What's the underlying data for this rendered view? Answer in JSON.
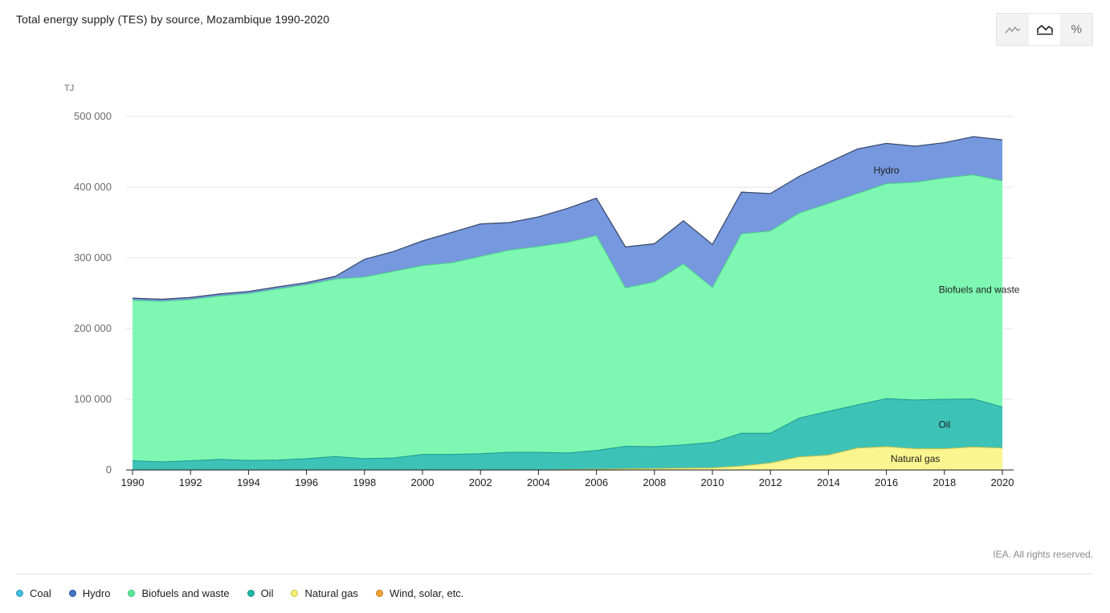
{
  "title": "Total energy supply (TES) by source, Mozambique 1990-2020",
  "view_modes": [
    {
      "name": "line",
      "icon": "line-chart-icon",
      "glyph": "⩘",
      "active": false
    },
    {
      "name": "area",
      "icon": "area-chart-icon",
      "glyph": "⛰",
      "active": true
    },
    {
      "name": "percent",
      "icon": "percent-icon",
      "glyph": "%",
      "active": false
    }
  ],
  "credit": "IEA. All rights reserved.",
  "legend": [
    {
      "label": "Coal",
      "color": "#44bde3"
    },
    {
      "label": "Hydro",
      "color": "#4472c4"
    },
    {
      "label": "Biofuels and waste",
      "color": "#5ce89a"
    },
    {
      "label": "Oil",
      "color": "#1fb8a6"
    },
    {
      "label": "Natural gas",
      "color": "#f5ef72"
    },
    {
      "label": "Wind, solar, etc.",
      "color": "#f0a035"
    }
  ],
  "chart_data": {
    "type": "area",
    "stacked": true,
    "title": "Total energy supply (TES) by source, Mozambique 1990-2020",
    "ylabel": "TJ",
    "ylim": [
      0,
      500000
    ],
    "yticks": [
      "0",
      "100 000",
      "200 000",
      "300 000",
      "400 000",
      "500 000"
    ],
    "ytick_values": [
      0,
      100000,
      200000,
      300000,
      400000,
      500000
    ],
    "xticks": [
      1990,
      1992,
      1994,
      1996,
      1998,
      2000,
      2002,
      2004,
      2006,
      2008,
      2010,
      2012,
      2014,
      2016,
      2018,
      2020
    ],
    "x": [
      1990,
      1991,
      1992,
      1993,
      1994,
      1995,
      1996,
      1997,
      1998,
      1999,
      2000,
      2001,
      2002,
      2003,
      2004,
      2005,
      2006,
      2007,
      2008,
      2009,
      2010,
      2011,
      2012,
      2013,
      2014,
      2015,
      2016,
      2017,
      2018,
      2019,
      2020
    ],
    "grid": true,
    "series": [
      {
        "name": "Natural gas",
        "color": "#faf58f",
        "line": "#c9c34a",
        "label": "Natural gas",
        "label_x": 2017,
        "label_y": 16000,
        "values": [
          0,
          0,
          0,
          0,
          0,
          0,
          0,
          0,
          0,
          0,
          0,
          0,
          0,
          0,
          0,
          500,
          1000,
          1500,
          2000,
          2500,
          3000,
          5500,
          10000,
          18500,
          21000,
          31000,
          33000,
          30000,
          30000,
          32500,
          31000
        ]
      },
      {
        "name": "Oil",
        "color": "#3dc2b8",
        "line": "#1d9a8e",
        "label": "Oil",
        "label_x": 2018,
        "label_y": 64000,
        "values": [
          13000,
          11500,
          13000,
          15000,
          13500,
          14000,
          16000,
          19000,
          16000,
          17000,
          22000,
          22000,
          23000,
          25000,
          25000,
          23500,
          26500,
          32000,
          31000,
          33000,
          36000,
          46500,
          42000,
          55000,
          62000,
          61000,
          68000,
          69000,
          70000,
          68000,
          58000
        ]
      },
      {
        "name": "Biofuels and waste",
        "color": "#7df7b2",
        "line": "#4fd08b",
        "label": "Biofuels and waste",
        "label_x": 2019.2,
        "label_y": 255000,
        "values": [
          227000,
          227000,
          228000,
          231000,
          236000,
          242000,
          246000,
          251000,
          257000,
          264000,
          267000,
          271000,
          279000,
          286000,
          291000,
          298000,
          304000,
          224000,
          233000,
          256000,
          219000,
          282000,
          286000,
          290000,
          294000,
          299000,
          304000,
          308000,
          313000,
          317000,
          320000
        ]
      },
      {
        "name": "Hydro",
        "color": "#7598de",
        "line": "#4a6bc0",
        "label": "Hydro",
        "label_x": 2016,
        "label_y": 424000,
        "values": [
          3000,
          3000,
          3000,
          3000,
          3000,
          3000,
          3000,
          4000,
          25000,
          28000,
          35000,
          43000,
          46000,
          39000,
          42000,
          48000,
          53000,
          58000,
          54000,
          61000,
          61000,
          59000,
          53000,
          52000,
          58000,
          63000,
          57000,
          51000,
          50000,
          54000,
          58000
        ]
      }
    ]
  }
}
